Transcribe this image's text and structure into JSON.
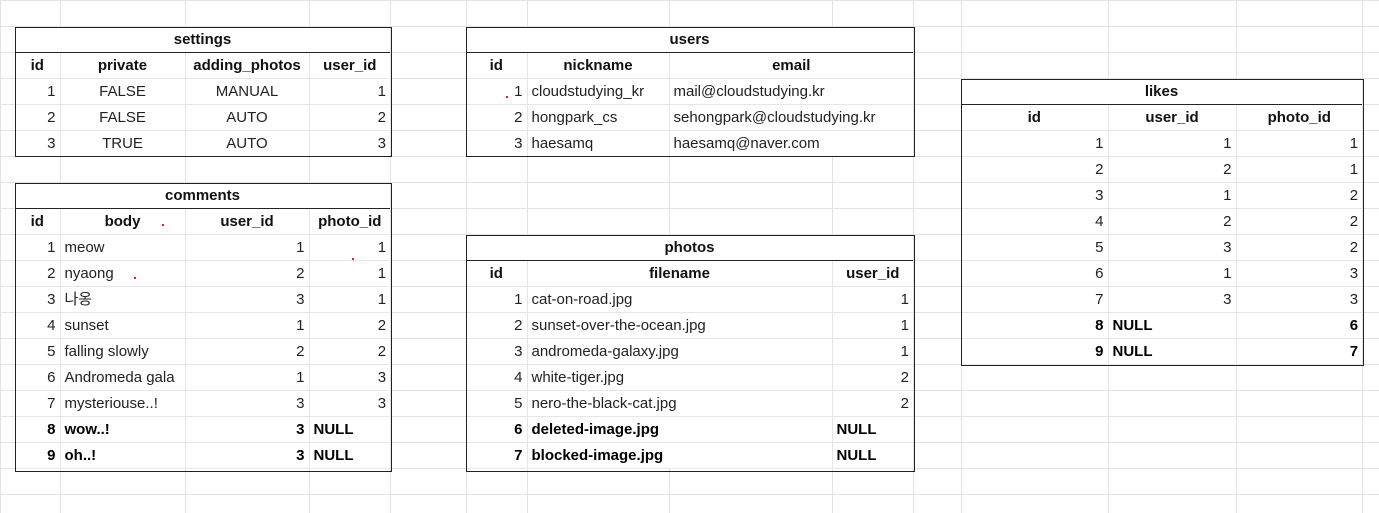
{
  "settings": {
    "title": "settings",
    "columns": [
      "id",
      "private",
      "adding_photos",
      "user_id"
    ],
    "rows": [
      [
        "1",
        "FALSE",
        "MANUAL",
        "1"
      ],
      [
        "2",
        "FALSE",
        "AUTO",
        "2"
      ],
      [
        "3",
        "TRUE",
        "AUTO",
        "3"
      ]
    ]
  },
  "comments": {
    "title": "comments",
    "columns": [
      "id",
      "body",
      "user_id",
      "photo_id"
    ],
    "rows": [
      [
        "1",
        "meow",
        "1",
        "1"
      ],
      [
        "2",
        "nyaong",
        "2",
        "1"
      ],
      [
        "3",
        "나옹",
        "3",
        "1"
      ],
      [
        "4",
        "sunset",
        "1",
        "2"
      ],
      [
        "5",
        "falling slowly",
        "2",
        "2"
      ],
      [
        "6",
        "Andromeda gala",
        "1",
        "3"
      ],
      [
        "7",
        "mysteriouse..!",
        "3",
        "3"
      ],
      [
        "8",
        "wow..!",
        "3",
        "NULL"
      ],
      [
        "9",
        "oh..!",
        "3",
        "NULL"
      ]
    ]
  },
  "users": {
    "title": "users",
    "columns": [
      "id",
      "nickname",
      "email"
    ],
    "rows": [
      [
        "1",
        "cloudstudying_kr",
        "mail@cloudstudying.kr"
      ],
      [
        "2",
        "hongpark_cs",
        "sehongpark@cloudstudying.kr"
      ],
      [
        "3",
        "haesamq",
        "haesamq@naver.com"
      ]
    ]
  },
  "photos": {
    "title": "photos",
    "columns": [
      "id",
      "filename",
      "user_id"
    ],
    "rows": [
      [
        "1",
        "cat-on-road.jpg",
        "1"
      ],
      [
        "2",
        "sunset-over-the-ocean.jpg",
        "1"
      ],
      [
        "3",
        "andromeda-galaxy.jpg",
        "1"
      ],
      [
        "4",
        "white-tiger.jpg",
        "2"
      ],
      [
        "5",
        "nero-the-black-cat.jpg",
        "2"
      ],
      [
        "6",
        "deleted-image.jpg",
        "NULL"
      ],
      [
        "7",
        "blocked-image.jpg",
        "NULL"
      ]
    ]
  },
  "likes": {
    "title": "likes",
    "columns": [
      "id",
      "user_id",
      "photo_id"
    ],
    "rows": [
      [
        "1",
        "1",
        "1"
      ],
      [
        "2",
        "2",
        "1"
      ],
      [
        "3",
        "1",
        "2"
      ],
      [
        "4",
        "2",
        "2"
      ],
      [
        "5",
        "3",
        "2"
      ],
      [
        "6",
        "1",
        "3"
      ],
      [
        "7",
        "3",
        "3"
      ],
      [
        "8",
        "NULL",
        "6"
      ],
      [
        "9",
        "NULL",
        "7"
      ]
    ]
  },
  "colors": {
    "grid": "#e3e3e3",
    "border": "#222222",
    "background": "#ffffff"
  }
}
